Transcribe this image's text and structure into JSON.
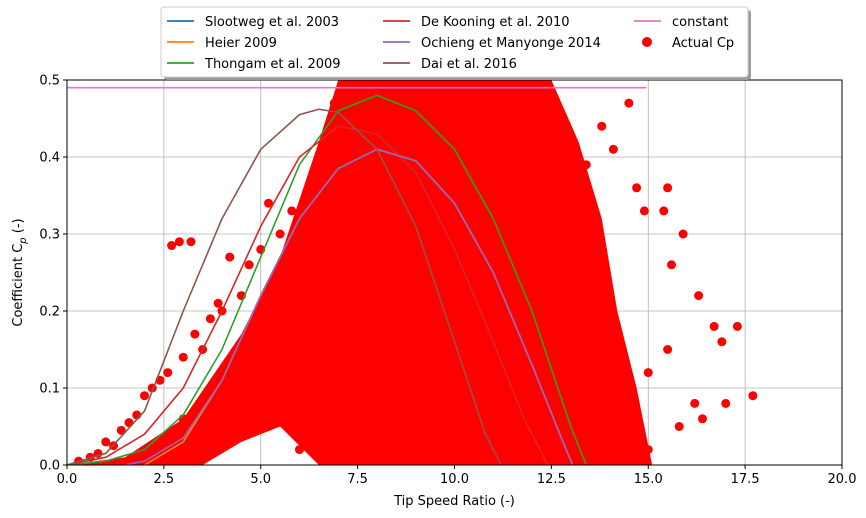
{
  "chart_data": {
    "type": "line",
    "xlabel": "Tip Speed Ratio (-)",
    "ylabel_main": "Coefficient C",
    "ylabel_sub": "p",
    "ylabel_unit": " (-)",
    "xlim": [
      0,
      20
    ],
    "ylim": [
      0,
      0.5
    ],
    "xticks": [
      "0.0",
      "2.5",
      "5.0",
      "7.5",
      "10.0",
      "12.5",
      "15.0",
      "17.5",
      "20.0"
    ],
    "yticks": [
      "0.0",
      "0.1",
      "0.2",
      "0.3",
      "0.4",
      "0.5"
    ],
    "grid": true,
    "legend_position": "top-center",
    "series": [
      {
        "name": "Slootweg et al. 2003",
        "color": "#1f77b4",
        "x": [
          2.0,
          3.0,
          4.0,
          5.0,
          6.0,
          7.0,
          8.0,
          9.0,
          10.0,
          11.0,
          12.0,
          12.8,
          13.05
        ],
        "y": [
          0.0,
          0.03,
          0.11,
          0.22,
          0.32,
          0.385,
          0.41,
          0.395,
          0.34,
          0.25,
          0.13,
          0.03,
          0.0
        ]
      },
      {
        "name": "Heier 2009",
        "color": "#ff7f0e",
        "x": [
          2.0,
          3.0,
          4.0,
          5.0,
          6.0,
          7.0,
          8.0,
          9.0,
          10.0,
          11.0,
          12.0,
          12.8,
          13.05
        ],
        "y": [
          0.0,
          0.03,
          0.11,
          0.22,
          0.32,
          0.385,
          0.41,
          0.395,
          0.34,
          0.25,
          0.13,
          0.03,
          0.0
        ]
      },
      {
        "name": "Thongam et al. 2009",
        "color": "#2ca02c",
        "x": [
          0.0,
          1.0,
          2.0,
          3.0,
          4.0,
          5.0,
          6.0,
          7.0,
          8.0,
          9.0,
          10.0,
          11.0,
          12.0,
          13.0,
          13.4
        ],
        "y": [
          0.0,
          0.005,
          0.02,
          0.065,
          0.15,
          0.27,
          0.39,
          0.46,
          0.48,
          0.46,
          0.41,
          0.32,
          0.2,
          0.05,
          0.0
        ]
      },
      {
        "name": "De Kooning et al. 2010",
        "color": "#d62728",
        "x": [
          0.0,
          1.0,
          2.0,
          3.0,
          4.0,
          5.0,
          6.0,
          7.0,
          8.0,
          9.0,
          10.0,
          11.0,
          11.8,
          12.4
        ],
        "y": [
          0.0,
          0.01,
          0.04,
          0.1,
          0.2,
          0.31,
          0.4,
          0.44,
          0.43,
          0.38,
          0.28,
          0.16,
          0.06,
          0.0
        ]
      },
      {
        "name": "Ochieng et Manyonge 2014",
        "color": "#9467bd",
        "x": [
          1.5,
          2.0,
          3.0,
          4.0,
          5.0,
          6.0,
          7.0,
          8.0,
          9.0,
          10.0,
          11.0,
          12.0,
          12.8,
          13.05
        ],
        "y": [
          0.0,
          0.005,
          0.035,
          0.11,
          0.22,
          0.32,
          0.385,
          0.41,
          0.395,
          0.34,
          0.25,
          0.13,
          0.03,
          0.0
        ]
      },
      {
        "name": "Dai et al. 2016",
        "color": "#8c564b",
        "x": [
          0.0,
          1.0,
          2.0,
          3.0,
          4.0,
          5.0,
          6.0,
          6.5,
          7.0,
          8.0,
          9.0,
          10.0,
          10.8,
          11.2
        ],
        "y": [
          0.0,
          0.015,
          0.07,
          0.2,
          0.32,
          0.41,
          0.455,
          0.462,
          0.458,
          0.41,
          0.31,
          0.16,
          0.04,
          0.0
        ]
      },
      {
        "name": "constant",
        "color": "#e377c2",
        "x": [
          0.0,
          14.95
        ],
        "y": [
          0.49,
          0.49
        ]
      }
    ],
    "scatter": {
      "name": "Actual Cp",
      "color": "#ff0000",
      "points": [
        [
          0.3,
          0.005
        ],
        [
          0.6,
          0.01
        ],
        [
          0.8,
          0.015
        ],
        [
          1.0,
          0.03
        ],
        [
          1.2,
          0.025
        ],
        [
          1.4,
          0.045
        ],
        [
          1.6,
          0.055
        ],
        [
          1.8,
          0.065
        ],
        [
          2.0,
          0.09
        ],
        [
          2.2,
          0.1
        ],
        [
          2.4,
          0.11
        ],
        [
          2.6,
          0.12
        ],
        [
          2.7,
          0.285
        ],
        [
          2.9,
          0.29
        ],
        [
          3.2,
          0.29
        ],
        [
          3.0,
          0.14
        ],
        [
          3.3,
          0.17
        ],
        [
          3.5,
          0.15
        ],
        [
          3.7,
          0.19
        ],
        [
          3.9,
          0.21
        ],
        [
          4.0,
          0.2
        ],
        [
          4.2,
          0.27
        ],
        [
          4.5,
          0.22
        ],
        [
          4.7,
          0.26
        ],
        [
          5.0,
          0.28
        ],
        [
          5.2,
          0.34
        ],
        [
          5.5,
          0.3
        ],
        [
          5.8,
          0.33
        ],
        [
          3.0,
          0.06
        ],
        [
          3.5,
          0.08
        ],
        [
          4.0,
          0.05
        ],
        [
          4.5,
          0.1
        ],
        [
          5.0,
          0.12
        ],
        [
          5.5,
          0.14
        ],
        [
          6.0,
          0.15
        ],
        [
          6.5,
          0.18
        ],
        [
          7.0,
          0.2
        ],
        [
          7.5,
          0.24
        ],
        [
          8.0,
          0.3
        ],
        [
          8.5,
          0.33
        ],
        [
          9.0,
          0.31
        ],
        [
          9.5,
          0.28
        ],
        [
          10.0,
          0.25
        ],
        [
          10.5,
          0.22
        ],
        [
          11.0,
          0.18
        ],
        [
          7.3,
          0.41
        ],
        [
          7.6,
          0.37
        ],
        [
          8.2,
          0.35
        ],
        [
          8.8,
          0.36
        ],
        [
          9.3,
          0.39
        ],
        [
          6.9,
          0.47
        ],
        [
          7.8,
          0.49
        ],
        [
          8.6,
          0.48
        ],
        [
          9.8,
          0.47
        ],
        [
          10.6,
          0.49
        ],
        [
          11.4,
          0.47
        ],
        [
          12.2,
          0.49
        ],
        [
          12.6,
          0.44
        ],
        [
          13.0,
          0.42
        ],
        [
          13.4,
          0.39
        ],
        [
          13.8,
          0.44
        ],
        [
          14.1,
          0.41
        ],
        [
          14.5,
          0.47
        ],
        [
          14.7,
          0.36
        ],
        [
          14.9,
          0.33
        ],
        [
          15.4,
          0.33
        ],
        [
          15.5,
          0.36
        ],
        [
          15.6,
          0.26
        ],
        [
          15.9,
          0.3
        ],
        [
          16.3,
          0.22
        ],
        [
          16.7,
          0.18
        ],
        [
          17.3,
          0.18
        ],
        [
          16.9,
          0.16
        ],
        [
          17.0,
          0.08
        ],
        [
          17.7,
          0.09
        ],
        [
          16.2,
          0.08
        ],
        [
          16.4,
          0.06
        ],
        [
          15.8,
          0.05
        ],
        [
          15.0,
          0.12
        ],
        [
          15.5,
          0.15
        ],
        [
          14.0,
          0.2
        ],
        [
          13.5,
          0.25
        ],
        [
          12.5,
          0.3
        ],
        [
          12.0,
          0.35
        ],
        [
          11.5,
          0.4
        ],
        [
          6.0,
          0.02
        ],
        [
          6.5,
          0.03
        ],
        [
          7.0,
          0.05
        ],
        [
          7.5,
          0.07
        ],
        [
          8.0,
          0.09
        ],
        [
          9.0,
          0.12
        ],
        [
          10.0,
          0.1
        ],
        [
          11.0,
          0.08
        ],
        [
          12.0,
          0.06
        ],
        [
          13.0,
          0.04
        ],
        [
          14.0,
          0.03
        ],
        [
          15.0,
          0.02
        ],
        [
          9.5,
          0.03
        ],
        [
          10.5,
          0.04
        ],
        [
          11.5,
          0.02
        ]
      ]
    }
  }
}
